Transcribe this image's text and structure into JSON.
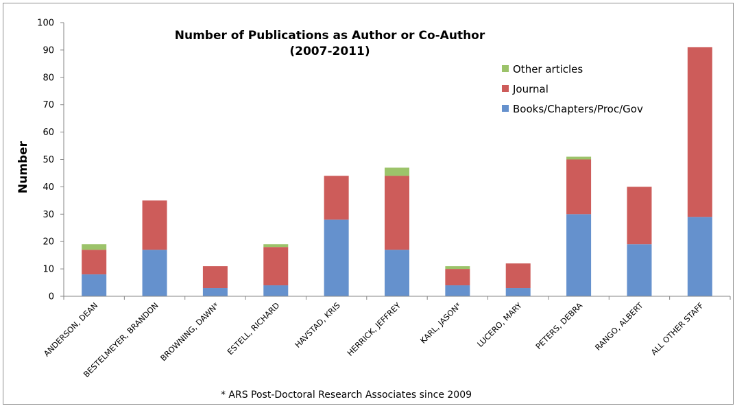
{
  "chart_data": {
    "type": "bar",
    "stacked": true,
    "title": "Number of Publications as Author or Co-Author",
    "subtitle": "(2007-2011)",
    "xlabel": "",
    "ylabel": "Number",
    "ylim": [
      0,
      100
    ],
    "yticks": [
      0,
      10,
      20,
      30,
      40,
      50,
      60,
      70,
      80,
      90,
      100
    ],
    "grid": false,
    "legend_position": "top-right",
    "categories": [
      "ANDERSON, DEAN",
      "BESTELMEYER,  BRANDON",
      "BROWNING, DAWN*",
      "ESTELL, RICHARD",
      "HAVSTAD, KRIS",
      "HERRICK, JEFFREY",
      "KARL, JASON*",
      "LUCERO, MARY",
      "PETERS, DEBRA",
      "RANGO, ALBERT",
      "ALL OTHER STAFF"
    ],
    "series": [
      {
        "name": "Books/Chapters/Proc/Gov",
        "color": "#6591cd",
        "values": [
          8,
          17,
          3,
          4,
          28,
          17,
          4,
          3,
          30,
          19,
          29
        ]
      },
      {
        "name": "Journal",
        "color": "#cd5c5a",
        "values": [
          9,
          18,
          8,
          14,
          16,
          27,
          6,
          9,
          20,
          21,
          62
        ]
      },
      {
        "name": "Other articles",
        "color": "#9cc36a",
        "values": [
          2,
          0,
          0,
          1,
          0,
          3,
          1,
          0,
          1,
          0,
          0
        ]
      }
    ],
    "legend_order": [
      "Other articles",
      "Journal",
      "Books/Chapters/Proc/Gov"
    ],
    "footnote": "* ARS Post-Doctoral Research Associates since 2009"
  }
}
